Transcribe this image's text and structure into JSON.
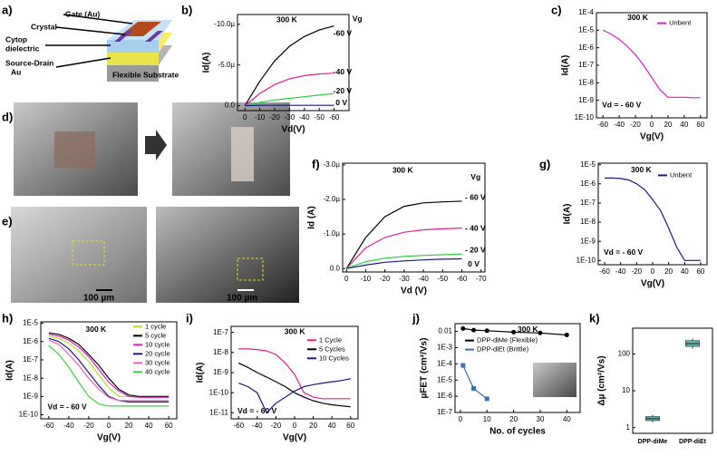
{
  "panel_labels": [
    "a)",
    "b)",
    "c)",
    "d)",
    "e)",
    "f)",
    "g)",
    "h)",
    "i)",
    "j)",
    "k)"
  ],
  "schematic": {
    "labels": [
      "Gate (Au)",
      "Crystal",
      "Cytop",
      "dielectric",
      "Source-Drain",
      "Au",
      "Flexible Substrate"
    ]
  },
  "images": {
    "scale_bars": [
      "100 µm",
      "100 µm"
    ]
  },
  "chart_data": [
    {
      "type": "line",
      "xlabel": "Vd(V)",
      "ylabel": "Id(A)",
      "annotations": [
        "300 K",
        "Vg",
        "-60 V",
        "-40 V",
        "-20 V",
        "0 V"
      ],
      "x": [
        0,
        -10,
        -20,
        -30,
        -40,
        -50,
        -60
      ],
      "xlim": [
        5,
        -70
      ],
      "xticks": [
        0,
        -10,
        -20,
        -30,
        -40,
        -50,
        -60
      ],
      "ylim": [
        6e-07,
        -1.12e-05
      ],
      "yticks": [
        {
          "value": 0,
          "label": "0.0"
        },
        {
          "value": -5e-06,
          "label": "-5.0µ"
        },
        {
          "value": -1e-05,
          "label": "-10.0µ"
        }
      ],
      "series": [
        {
          "color": "#000000",
          "values": [
            0,
            -3e-06,
            -5.5e-06,
            -7.3e-06,
            -8.5e-06,
            -9.3e-06,
            -9.8e-06
          ]
        },
        {
          "color": "#e0208c",
          "values": [
            0,
            -1.5e-06,
            -2.6e-06,
            -3.3e-06,
            -3.7e-06,
            -3.9e-06,
            -4e-06
          ]
        },
        {
          "color": "#2ad040",
          "values": [
            0,
            -4e-07,
            -7e-07,
            -9e-07,
            -1.1e-06,
            -1.3e-06,
            -1.5e-06
          ]
        },
        {
          "color": "#1a1a80",
          "values": [
            0,
            -5e-08,
            -5e-08,
            -5e-08,
            -5e-08,
            -5e-08,
            -5e-08
          ]
        }
      ]
    },
    {
      "type": "line",
      "ylog": true,
      "xlabel": "Vg(V)",
      "ylabel": "Id(A)",
      "annotations": [
        "300 K",
        "Vd = - 60 V"
      ],
      "x": [
        -60,
        -50,
        -40,
        -30,
        -20,
        -10,
        0,
        10,
        20,
        30,
        40,
        50,
        60
      ],
      "xlim": [
        -68,
        68
      ],
      "xticks": [
        -60,
        -40,
        -20,
        0,
        20,
        40,
        60
      ],
      "ylim": [
        1e-10,
        0.0001
      ],
      "yticks": [
        {
          "value": 0.0001,
          "label": "1E-4"
        },
        {
          "value": 1e-05,
          "label": "1E-5"
        },
        {
          "value": 1e-06,
          "label": "1E-6"
        },
        {
          "value": 1e-07,
          "label": "1E-7"
        },
        {
          "value": 1e-08,
          "label": "1E-8"
        },
        {
          "value": 1e-09,
          "label": "1E-9"
        },
        {
          "value": 1e-10,
          "label": "1E-10"
        }
      ],
      "series": [
        {
          "name": "Unbent",
          "color": "#e020c0",
          "values": [
            1e-05,
            6e-06,
            3e-06,
            1.2e-06,
            4e-07,
            1e-07,
            2e-08,
            4e-09,
            1.5e-09,
            1.5e-09,
            1.5e-09,
            1.4e-09,
            1.4e-09
          ]
        }
      ]
    },
    {
      "type": "line",
      "xlabel": "Vd (V)",
      "ylabel": "Id (A)",
      "annotations": [
        "300 K",
        "Vg",
        "- 60 V",
        "- 40 V",
        "- 20 V",
        "0 V"
      ],
      "x": [
        0,
        -10,
        -20,
        -30,
        -40,
        -50,
        -60
      ],
      "xlim": [
        2,
        -72
      ],
      "xticks": [
        0,
        -10,
        -20,
        -30,
        -40,
        -50,
        -60,
        -70
      ],
      "ylim": [
        1e-07,
        -3.05e-06
      ],
      "yticks": [
        {
          "value": 0,
          "label": "0.0"
        },
        {
          "value": -1e-06,
          "label": "-1.0µ"
        },
        {
          "value": -2e-06,
          "label": "-2.0µ"
        },
        {
          "value": -3e-06,
          "label": "-3.0µ"
        }
      ],
      "series": [
        {
          "color": "#000000",
          "values": [
            0,
            -9e-07,
            -1.5e-06,
            -1.8e-06,
            -1.9e-06,
            -1.93e-06,
            -1.95e-06
          ]
        },
        {
          "color": "#e0208c",
          "values": [
            0,
            -6e-07,
            -9e-07,
            -1.05e-06,
            -1.12e-06,
            -1.15e-06,
            -1.17e-06
          ]
        },
        {
          "color": "#2ad040",
          "values": [
            0,
            -2e-07,
            -3e-07,
            -3.5e-07,
            -3.8e-07,
            -4e-07,
            -4.2e-07
          ]
        },
        {
          "color": "#1a1a80",
          "values": [
            0,
            -1e-07,
            -1.8e-07,
            -2.2e-07,
            -2.5e-07,
            -2.7e-07,
            -2.8e-07
          ]
        }
      ]
    },
    {
      "type": "line",
      "ylog": true,
      "xlabel": "Vg(V)",
      "ylabel": "Id(A)",
      "annotations": [
        "300 K",
        "Vd = - 60 V"
      ],
      "x": [
        -60,
        -50,
        -40,
        -30,
        -20,
        -10,
        0,
        10,
        20,
        30,
        40,
        50,
        60
      ],
      "xlim": [
        -68,
        68
      ],
      "xticks": [
        -60,
        -40,
        -20,
        0,
        20,
        40,
        60
      ],
      "ylim": [
        6e-11,
        1.2e-05
      ],
      "yticks": [
        {
          "value": 1e-05,
          "label": "1E-5"
        },
        {
          "value": 1e-06,
          "label": "1E-6"
        },
        {
          "value": 1e-07,
          "label": "1E-7"
        },
        {
          "value": 1e-08,
          "label": "1E-8"
        },
        {
          "value": 1e-09,
          "label": "1E-9"
        },
        {
          "value": 1e-10,
          "label": "1E-10"
        }
      ],
      "series": [
        {
          "name": "Unbent",
          "color": "#1a1a80",
          "values": [
            2e-06,
            2e-06,
            1.9e-06,
            1.6e-06,
            1e-06,
            5e-07,
            1.5e-07,
            4e-08,
            5e-09,
            5e-10,
            1e-10,
            1e-10,
            1e-10
          ]
        }
      ]
    },
    {
      "type": "line",
      "ylog": true,
      "xlabel": "Vg(V)",
      "ylabel": "Id(A)",
      "annotations": [
        "300 K",
        "Vd = - 60 V"
      ],
      "x": [
        -60,
        -50,
        -40,
        -30,
        -20,
        -10,
        0,
        10,
        20,
        30,
        40,
        50,
        60
      ],
      "xlim": [
        -68,
        68
      ],
      "xticks": [
        -60,
        -40,
        -20,
        0,
        20,
        40,
        60
      ],
      "ylim": [
        6e-11,
        1.2e-05
      ],
      "yticks": [
        {
          "value": 1e-05,
          "label": "1E-5"
        },
        {
          "value": 1e-06,
          "label": "1E-6"
        },
        {
          "value": 1e-07,
          "label": "1E-7"
        },
        {
          "value": 1e-08,
          "label": "1E-8"
        },
        {
          "value": 1e-09,
          "label": "1E-9"
        },
        {
          "value": 1e-10,
          "label": "1E-10"
        }
      ],
      "series": [
        {
          "name": "1 cycle",
          "color": "#b8e020",
          "values": [
            2e-06,
            1.5e-06,
            8e-07,
            3e-07,
            8e-08,
            1.5e-08,
            3e-09,
            1e-09,
            1e-09,
            1e-09,
            1e-09,
            1e-09,
            1e-09
          ]
        },
        {
          "name": "5 cycle",
          "color": "#000000",
          "values": [
            3e-06,
            2.5e-06,
            1.5e-06,
            7e-07,
            2e-07,
            5e-08,
            1e-08,
            2.5e-09,
            1.2e-09,
            1e-09,
            1e-09,
            1e-09,
            1e-09
          ]
        },
        {
          "name": "10 cycle",
          "color": "#e020c0",
          "values": [
            2.5e-06,
            2e-06,
            1.2e-06,
            5e-07,
            1.5e-07,
            3e-08,
            6e-09,
            2e-09,
            1e-09,
            9e-10,
            9e-10,
            9e-10,
            9e-10
          ]
        },
        {
          "name": "20 cycle",
          "color": "#1a1a80",
          "values": [
            1.5e-06,
            1e-06,
            4e-07,
            1e-07,
            2e-08,
            4e-09,
            1e-09,
            6e-10,
            5e-10,
            5e-10,
            5e-10,
            5e-10,
            5e-10
          ]
        },
        {
          "name": "30 cycle",
          "color": "#f060b0",
          "values": [
            1.2e-06,
            7e-07,
            2e-07,
            5e-08,
            1e-08,
            2.5e-09,
            9e-10,
            6e-10,
            6e-10,
            6e-10,
            6e-10,
            6e-10,
            6e-10
          ]
        },
        {
          "name": "40 cycle",
          "color": "#40d040",
          "values": [
            6e-07,
            2e-07,
            4e-08,
            6e-09,
            1e-09,
            4e-10,
            3e-10,
            3e-10,
            3e-10,
            3e-10,
            3e-10,
            3e-10,
            3e-10
          ]
        }
      ]
    },
    {
      "type": "line",
      "ylog": true,
      "xlabel": "Vg(V)",
      "ylabel": "Id(A)",
      "annotations": [
        "300 K",
        "Vd = - 60 V"
      ],
      "x": [
        -60,
        -50,
        -40,
        -30,
        -20,
        -10,
        0,
        10,
        20,
        30,
        40,
        50,
        60
      ],
      "xlim": [
        -68,
        68
      ],
      "xticks": [
        -60,
        -40,
        -20,
        0,
        20,
        40,
        60
      ],
      "ylim": [
        5e-12,
        2e-07
      ],
      "yticks": [
        {
          "value": 1e-07,
          "label": "1E-7"
        },
        {
          "value": 1e-08,
          "label": "1E-8"
        },
        {
          "value": 1e-09,
          "label": "1E-9"
        },
        {
          "value": 1e-10,
          "label": "1E-10"
        },
        {
          "value": 1e-11,
          "label": "1E-11"
        }
      ],
      "series": [
        {
          "name": "1 Cycle",
          "color": "#e0208c",
          "values": [
            1.5e-08,
            1.5e-08,
            1.4e-08,
            1.2e-08,
            8e-09,
            3e-09,
            8e-10,
            1e-10,
            6e-11,
            5e-11,
            5e-11,
            5e-11,
            5e-11
          ]
        },
        {
          "name": "5 Cycles",
          "color": "#000000",
          "values": [
            3e-09,
            1.8e-09,
            1e-09,
            6e-10,
            3.5e-10,
            2e-10,
            1e-10,
            6e-11,
            4e-11,
            3e-11,
            2.5e-11,
            2.2e-11,
            2e-11
          ]
        },
        {
          "name": "10 Cycles",
          "color": "#1a1a80",
          "values": [
            3e-10,
            2e-10,
            1e-10,
            1e-11,
            3e-11,
            6e-11,
            1.2e-10,
            2e-10,
            2.5e-10,
            3e-10,
            3.5e-10,
            4e-10,
            5e-10
          ]
        }
      ]
    },
    {
      "type": "line",
      "ylog": true,
      "markers": true,
      "xlabel": "No. of cycles",
      "ylabel": "µFET (cm²/Vs)",
      "annotations": [
        "300 K"
      ],
      "xlim": [
        -2,
        45
      ],
      "xticks": [
        0,
        10,
        20,
        30,
        40
      ],
      "ylim": [
        1e-07,
        0.03
      ],
      "yticks": [
        {
          "value": 1e-07,
          "label": "1E-7"
        },
        {
          "value": 1e-06,
          "label": "1E-6"
        },
        {
          "value": 1e-05,
          "label": "1E-5"
        },
        {
          "value": 0.0001,
          "label": "1E-4"
        },
        {
          "value": 0.001,
          "label": "1E-3"
        },
        0.01
      ],
      "series": [
        {
          "name": "DPP-diMe (Flexible)",
          "color": "#000000",
          "x": [
            1,
            5,
            10,
            20,
            30,
            40
          ],
          "values": [
            0.015,
            0.012,
            0.011,
            0.009,
            0.008,
            0.006
          ]
        },
        {
          "name": "DPP-diEt (Brittle)",
          "color": "#3a6fb0",
          "x": [
            1,
            5,
            10
          ],
          "values": [
            8e-05,
            3e-06,
            7e-07
          ]
        }
      ]
    },
    {
      "type": "box",
      "ylog": true,
      "ylabel": "Δµ (cm²/Vs)",
      "categories": [
        "DPP-diMe",
        "DPP-diEt"
      ],
      "color": "#5fb3a8",
      "ylim": [
        0.7,
        500
      ],
      "yticks": [
        1,
        10,
        100
      ],
      "boxes": [
        {
          "min": 1.4,
          "q1": 1.55,
          "median": 1.75,
          "q3": 2.0,
          "max": 2.2
        },
        {
          "min": 140,
          "q1": 160,
          "median": 190,
          "q3": 230,
          "max": 260
        }
      ]
    }
  ]
}
